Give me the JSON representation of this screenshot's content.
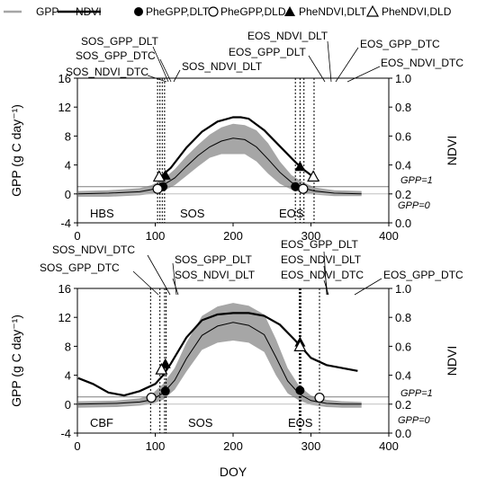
{
  "legend": [
    {
      "label": "GPP",
      "marker": "line-gray"
    },
    {
      "label": "NDVI",
      "marker": "line-black"
    },
    {
      "label": "PheGPP,DLT",
      "marker": "circle-filled"
    },
    {
      "label": "PheGPP,DLD",
      "marker": "circle-open"
    },
    {
      "label": "PheNDVI,DLT",
      "marker": "triangle-filled"
    },
    {
      "label": "PheNDVI,DLD",
      "marker": "triangle-open"
    }
  ],
  "colors": {
    "gpp": "#a6a6a6",
    "gpp_smooth": "#000000",
    "ndvi": "#000000",
    "threshold": "#7f7f7f",
    "zero_line": "#c0c0c0"
  },
  "chart_data": [
    {
      "type": "line",
      "site": "HBS",
      "xlabel": "",
      "ylabel": "GPP (g C day⁻¹)",
      "y2label": "NDVI",
      "xlim": [
        0,
        400
      ],
      "ylim": [
        -4,
        16
      ],
      "y2lim": [
        0.0,
        1.0
      ],
      "xticks": [
        0,
        100,
        200,
        300,
        400
      ],
      "yticks": [
        -4,
        0,
        4,
        8,
        12,
        16
      ],
      "y2ticks": [
        "0.0",
        "0.2",
        "0.4",
        "0.6",
        "0.8",
        "1.0"
      ],
      "gpp_range": {
        "x": [
          1,
          40,
          80,
          95,
          110,
          125,
          140,
          155,
          170,
          185,
          200,
          215,
          230,
          245,
          260,
          275,
          290,
          305,
          330,
          365
        ],
        "low": [
          -0.4,
          -0.4,
          -0.2,
          0,
          0.4,
          1.2,
          2.5,
          3.8,
          5.0,
          5.5,
          5.5,
          5.5,
          4.5,
          2.8,
          1.4,
          0.6,
          0.1,
          -0.1,
          -0.3,
          -0.3
        ],
        "high": [
          0.4,
          0.5,
          0.8,
          1.2,
          2.0,
          3.4,
          5.2,
          6.8,
          8.2,
          9.2,
          9.7,
          9.5,
          8.8,
          7.0,
          4.5,
          2.6,
          1.6,
          0.9,
          0.5,
          0.4
        ]
      },
      "gpp_smooth": {
        "x": [
          1,
          40,
          80,
          95,
          110,
          125,
          140,
          155,
          170,
          185,
          200,
          215,
          230,
          245,
          260,
          275,
          290,
          305,
          330,
          365
        ],
        "y": [
          0,
          0.1,
          0.3,
          0.6,
          1.2,
          2.2,
          3.8,
          5.3,
          6.5,
          7.3,
          7.7,
          7.5,
          6.5,
          4.8,
          3.0,
          1.6,
          0.8,
          0.4,
          0.1,
          0
        ]
      },
      "ndvi": {
        "x": [
          105,
          120,
          140,
          160,
          180,
          200,
          210,
          220,
          240,
          260,
          280,
          290,
          300,
          310
        ],
        "y": [
          0.31,
          0.38,
          0.52,
          0.63,
          0.7,
          0.73,
          0.73,
          0.72,
          0.64,
          0.53,
          0.42,
          0.37,
          0.33,
          0.29
        ]
      },
      "markers": [
        {
          "series": "PheGPP,DLT",
          "x": 110,
          "y": 1.0
        },
        {
          "series": "PheGPP,DLD",
          "x": 103,
          "y": 0.7
        },
        {
          "series": "PheNDVI,DLT",
          "x": 113,
          "y": 0.33
        },
        {
          "series": "PheNDVI,DLD",
          "x": 105,
          "y": 0.32
        },
        {
          "series": "PheGPP,DLT",
          "x": 280,
          "y": 1.0
        },
        {
          "series": "PheGPP,DLD",
          "x": 290,
          "y": 0.7
        },
        {
          "series": "PheNDVI,DLT",
          "x": 286,
          "y": 0.39
        },
        {
          "series": "PheNDVI,DLD",
          "x": 303,
          "y": 0.32
        }
      ],
      "threshold_lines": [
        {
          "label": "GPP=1",
          "y": 1
        },
        {
          "label": "GPP=0",
          "y": 0
        }
      ],
      "vlines": [
        {
          "label": "SOS_NDVI_DTC",
          "x": 103
        },
        {
          "label": "SOS_GPP_DTC",
          "x": 106
        },
        {
          "label": "SOS_GPP_DLT",
          "x": 109
        },
        {
          "label": "SOS_NDVI_DLT",
          "x": 112
        },
        {
          "label": "EOS_GPP_DLT",
          "x": 280
        },
        {
          "label": "EOS_NDVI_DLT",
          "x": 286
        },
        {
          "label": "EOS_GPP_DTC",
          "x": 291
        },
        {
          "label": "EOS_NDVI_DTC",
          "x": 304
        }
      ],
      "annotations": [
        {
          "text": "SOS_GPP_DLT"
        },
        {
          "text": "SOS_GPP_DTC"
        },
        {
          "text": "SOS_NDVI_DTC"
        },
        {
          "text": "SOS_NDVI_DLT"
        },
        {
          "text": "EOS_NDVI_DLT"
        },
        {
          "text": "EOS_GPP_DLT"
        },
        {
          "text": "EOS_GPP_DTC"
        },
        {
          "text": "EOS_NDVI_DTC"
        }
      ],
      "region_labels": [
        "HBS",
        "SOS",
        "EOS"
      ]
    },
    {
      "type": "line",
      "site": "CBF",
      "xlabel": "DOY",
      "ylabel": "GPP (g C day⁻¹)",
      "y2label": "NDVI",
      "xlim": [
        0,
        400
      ],
      "ylim": [
        -4,
        16
      ],
      "y2lim": [
        0.0,
        1.0
      ],
      "xticks": [
        0,
        100,
        200,
        300,
        400
      ],
      "yticks": [
        -4,
        0,
        4,
        8,
        12,
        16
      ],
      "y2ticks": [
        "0.0",
        "0.2",
        "0.4",
        "0.6",
        "0.8",
        "1.0"
      ],
      "gpp_range": {
        "x": [
          1,
          50,
          80,
          95,
          110,
          125,
          140,
          160,
          180,
          200,
          220,
          240,
          255,
          270,
          285,
          300,
          320,
          340,
          365
        ],
        "low": [
          -0.5,
          -0.4,
          -0.2,
          0,
          0.6,
          2.0,
          4.5,
          7.5,
          8.5,
          8.8,
          8.5,
          7.2,
          4.0,
          1.5,
          0.5,
          -0.1,
          -0.4,
          -0.5,
          -0.5
        ],
        "high": [
          0.4,
          0.5,
          0.8,
          1.3,
          2.8,
          5.0,
          8.5,
          12.2,
          13.5,
          14.0,
          13.6,
          12.4,
          9.0,
          5.0,
          2.5,
          1.2,
          0.6,
          0.4,
          0.3
        ]
      },
      "gpp_smooth": {
        "x": [
          1,
          50,
          80,
          95,
          110,
          125,
          140,
          160,
          180,
          200,
          220,
          240,
          255,
          270,
          285,
          300,
          320,
          340,
          365
        ],
        "y": [
          0,
          0.1,
          0.3,
          0.6,
          1.5,
          3.3,
          6.3,
          9.5,
          10.8,
          11.3,
          10.9,
          9.6,
          6.5,
          3.2,
          1.4,
          0.5,
          0.1,
          0,
          0
        ]
      },
      "ndvi": {
        "x": [
          1,
          20,
          40,
          60,
          80,
          100,
          110,
          120,
          140,
          160,
          180,
          200,
          220,
          240,
          260,
          280,
          290,
          300,
          320,
          340,
          360
        ],
        "y": [
          0.38,
          0.34,
          0.28,
          0.26,
          0.29,
          0.34,
          0.4,
          0.48,
          0.66,
          0.78,
          0.82,
          0.83,
          0.83,
          0.81,
          0.75,
          0.64,
          0.58,
          0.52,
          0.47,
          0.45,
          0.43
        ]
      },
      "markers": [
        {
          "series": "PheGPP,DLT",
          "x": 113,
          "y": 1.8
        },
        {
          "series": "PheGPP,DLD",
          "x": 95,
          "y": 0.9
        },
        {
          "series": "PheNDVI,DLT",
          "x": 113,
          "y": 0.48
        },
        {
          "series": "PheNDVI,DLD",
          "x": 108,
          "y": 0.44
        },
        {
          "series": "PheGPP,DLT",
          "x": 286,
          "y": 1.9
        },
        {
          "series": "PheGPP,DLD",
          "x": 311,
          "y": 0.9
        },
        {
          "series": "PheNDVI,DLT",
          "x": 286,
          "y": 0.63
        },
        {
          "series": "PheNDVI,DLD",
          "x": 286,
          "y": 0.6
        }
      ],
      "threshold_lines": [
        {
          "label": "GPP=1",
          "y": 1
        },
        {
          "label": "GPP=0",
          "y": 0
        }
      ],
      "vlines": [
        {
          "label": "SOS_GPP_DTC",
          "x": 94
        },
        {
          "label": "SOS_NDVI_DTC",
          "x": 106
        },
        {
          "label": "SOS_GPP_DLT",
          "x": 112
        },
        {
          "label": "SOS_NDVI_DLT",
          "x": 114
        },
        {
          "label": "EOS_GPP_DLT",
          "x": 285
        },
        {
          "label": "EOS_NDVI_DLT",
          "x": 286
        },
        {
          "label": "EOS_NDVI_DTC",
          "x": 287
        },
        {
          "label": "EOS_GPP_DTC",
          "x": 311
        }
      ],
      "annotations": [
        {
          "text": "SOS_NDVI_DTC"
        },
        {
          "text": "SOS_GPP_DTC"
        },
        {
          "text": "SOS_GPP_DLT"
        },
        {
          "text": "SOS_NDVI_DLT"
        },
        {
          "text": "EOS_GPP_DLT"
        },
        {
          "text": "EOS_NDVI_DLT"
        },
        {
          "text": "EOS_NDVI_DTC"
        },
        {
          "text": "EOS_GPP_DTC"
        }
      ],
      "region_labels": [
        "CBF",
        "SOS",
        "EOS"
      ]
    }
  ]
}
